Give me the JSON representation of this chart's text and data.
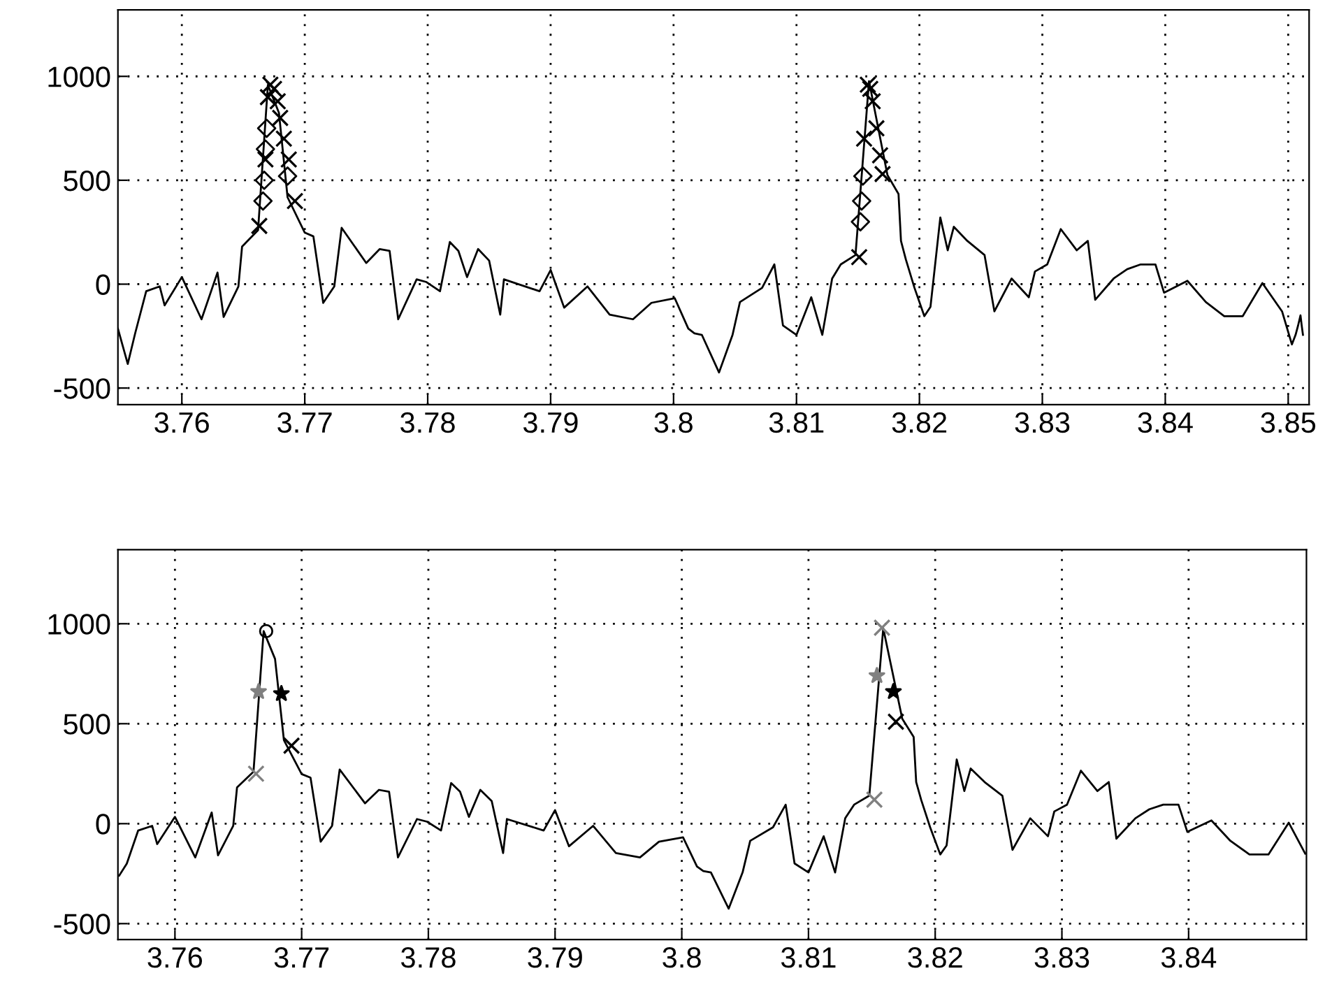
{
  "chart_data": [
    {
      "type": "line",
      "xlim": [
        3.7548,
        3.8517
      ],
      "ylim": [
        -580,
        1320
      ],
      "xticks": [
        3.76,
        3.77,
        3.78,
        3.79,
        3.8,
        3.81,
        3.82,
        3.83,
        3.84,
        3.85
      ],
      "yticks": [
        -500,
        0,
        500,
        1000
      ],
      "grid": true,
      "series": [
        {
          "type": "line",
          "color": "#000000",
          "marker": "none",
          "x": [
            3.7548,
            3.7556,
            3.7562,
            3.7571,
            3.7582,
            3.7586,
            3.76,
            3.7616,
            3.7629,
            3.7634,
            3.7646,
            3.7649,
            3.7662,
            3.767,
            3.7679,
            3.7686,
            3.77,
            3.7707,
            3.7715,
            3.7724,
            3.773,
            3.775,
            3.7761,
            3.7769,
            3.7776,
            3.7791,
            3.7799,
            3.781,
            3.7818,
            3.7825,
            3.7832,
            3.7841,
            3.785,
            3.7859,
            3.7862,
            3.7891,
            3.79,
            3.7911,
            3.793,
            3.7948,
            3.7967,
            3.7982,
            3.8001,
            3.8012,
            3.8017,
            3.8023,
            3.8037,
            3.8048,
            3.8054,
            3.8072,
            3.8082,
            3.8089,
            3.81,
            3.8112,
            3.8121,
            3.8129,
            3.8136,
            3.8148,
            3.8159,
            3.8174,
            3.8183,
            3.8185,
            3.8189,
            3.8196,
            3.8204,
            3.8209,
            3.8217,
            3.8223,
            3.8228,
            3.8239,
            3.8253,
            3.8261,
            3.8275,
            3.8289,
            3.8294,
            3.8304,
            3.8315,
            3.8328,
            3.8337,
            3.8343,
            3.8358,
            3.8369,
            3.838,
            3.8392,
            3.8399,
            3.8418,
            3.8433,
            3.8448,
            3.8463,
            3.8479,
            3.8495,
            3.8503,
            3.8506,
            3.8508,
            3.851,
            3.8511,
            3.8512
          ],
          "values": [
            -214,
            -384,
            -237,
            -34,
            -11,
            -102,
            34,
            -169,
            56,
            -158,
            -11,
            181,
            260,
            959,
            824,
            418,
            248,
            230,
            -90,
            -11,
            271,
            102,
            169,
            160,
            -169,
            23,
            10,
            -34,
            203,
            160,
            34,
            169,
            113,
            -147,
            23,
            -34,
            68,
            -113,
            -11,
            -147,
            -169,
            -90,
            -68,
            -214,
            -237,
            -244,
            -425,
            -244,
            -86,
            -18,
            95,
            -199,
            -244,
            -63,
            -244,
            27,
            95,
            140,
            977,
            525,
            434,
            208,
            118,
            -18,
            -154,
            -109,
            321,
            163,
            276,
            208,
            140,
            -131,
            27,
            -63,
            61,
            95,
            265,
            163,
            208,
            -75,
            27,
            72,
            95,
            95,
            -41,
            16,
            -86,
            -154,
            -154,
            5,
            -131,
            -290,
            -244,
            -200,
            -150,
            -200,
            -244
          ]
        },
        {
          "type": "scatter",
          "color": "#000000",
          "marker": "cross",
          "x": [
            3.7663,
            3.7668,
            3.767,
            3.7672,
            3.7675,
            3.7678,
            3.768,
            3.7683,
            3.7687,
            3.7692,
            3.8151,
            3.8155,
            3.8158,
            3.816,
            3.8162,
            3.8165,
            3.8168,
            3.817
          ],
          "values": [
            280,
            600,
            900,
            960,
            940,
            880,
            800,
            700,
            600,
            400,
            130,
            700,
            960,
            940,
            880,
            750,
            620,
            530
          ]
        },
        {
          "type": "scatter",
          "color": "#000000",
          "marker": "diamond",
          "x": [
            3.7666,
            3.7667,
            3.7668,
            3.7669,
            3.7686,
            3.8152,
            3.8153,
            3.8154
          ],
          "values": [
            400,
            500,
            650,
            750,
            520,
            300,
            400,
            520
          ]
        }
      ]
    },
    {
      "type": "line",
      "xlim": [
        3.7555,
        3.8493
      ],
      "ylim": [
        -580,
        1370
      ],
      "xticks": [
        3.76,
        3.77,
        3.78,
        3.79,
        3.8,
        3.81,
        3.82,
        3.83,
        3.84
      ],
      "yticks": [
        -500,
        0,
        500,
        1000
      ],
      "grid": true,
      "series": [
        {
          "type": "line",
          "color": "#000000",
          "marker": "none",
          "x": [
            3.7556,
            3.7562,
            3.7571,
            3.7582,
            3.7586,
            3.76,
            3.7616,
            3.7629,
            3.7634,
            3.7646,
            3.7649,
            3.7662,
            3.767,
            3.7679,
            3.7686,
            3.77,
            3.7707,
            3.7715,
            3.7724,
            3.773,
            3.775,
            3.7761,
            3.7769,
            3.7776,
            3.7791,
            3.7799,
            3.781,
            3.7818,
            3.7825,
            3.7832,
            3.7841,
            3.785,
            3.7859,
            3.7862,
            3.7891,
            3.79,
            3.7911,
            3.793,
            3.7948,
            3.7967,
            3.7982,
            3.8001,
            3.8012,
            3.8017,
            3.8023,
            3.8037,
            3.8048,
            3.8054,
            3.8072,
            3.8082,
            3.8089,
            3.81,
            3.8112,
            3.8121,
            3.8129,
            3.8136,
            3.8148,
            3.8159,
            3.8174,
            3.8183,
            3.8185,
            3.8189,
            3.8196,
            3.8204,
            3.8209,
            3.8217,
            3.8223,
            3.8228,
            3.8239,
            3.8253,
            3.8261,
            3.8275,
            3.8289,
            3.8294,
            3.8304,
            3.8315,
            3.8328,
            3.8337,
            3.8343,
            3.8358,
            3.8369,
            3.838,
            3.8392,
            3.8399,
            3.8418,
            3.8433,
            3.8448,
            3.8463,
            3.8479,
            3.8492
          ],
          "values": [
            -260,
            -200,
            -34,
            -11,
            -102,
            34,
            -169,
            56,
            -158,
            -11,
            181,
            260,
            963,
            824,
            418,
            248,
            230,
            -90,
            -11,
            271,
            102,
            169,
            160,
            -169,
            23,
            10,
            -34,
            203,
            160,
            34,
            169,
            113,
            -147,
            23,
            -34,
            68,
            -113,
            -11,
            -147,
            -169,
            -90,
            -68,
            -214,
            -237,
            -244,
            -425,
            -244,
            -86,
            -18,
            95,
            -199,
            -244,
            -63,
            -244,
            27,
            95,
            140,
            977,
            525,
            434,
            208,
            118,
            -18,
            -154,
            -109,
            321,
            163,
            276,
            208,
            140,
            -131,
            27,
            -63,
            61,
            95,
            265,
            163,
            208,
            -75,
            27,
            72,
            95,
            95,
            -41,
            16,
            -86,
            -154,
            -154,
            5,
            -150
          ]
        },
        {
          "type": "scatter",
          "color": "#000000",
          "marker": "circle",
          "x": [
            3.7672
          ],
          "values": [
            963
          ]
        },
        {
          "type": "scatter",
          "color": "#808080",
          "marker": "star",
          "x": [
            3.7666,
            3.8154
          ],
          "values": [
            660,
            740
          ]
        },
        {
          "type": "scatter",
          "color": "#000000",
          "marker": "star",
          "x": [
            3.7684,
            3.8167
          ],
          "values": [
            650,
            660
          ]
        },
        {
          "type": "scatter",
          "color": "#000000",
          "marker": "cross",
          "x": [
            3.7692,
            3.8169
          ],
          "values": [
            390,
            510
          ]
        },
        {
          "type": "scatter",
          "color": "#808080",
          "marker": "cross",
          "x": [
            3.7664,
            3.8152,
            3.8158
          ],
          "values": [
            250,
            120,
            980
          ]
        }
      ]
    }
  ]
}
